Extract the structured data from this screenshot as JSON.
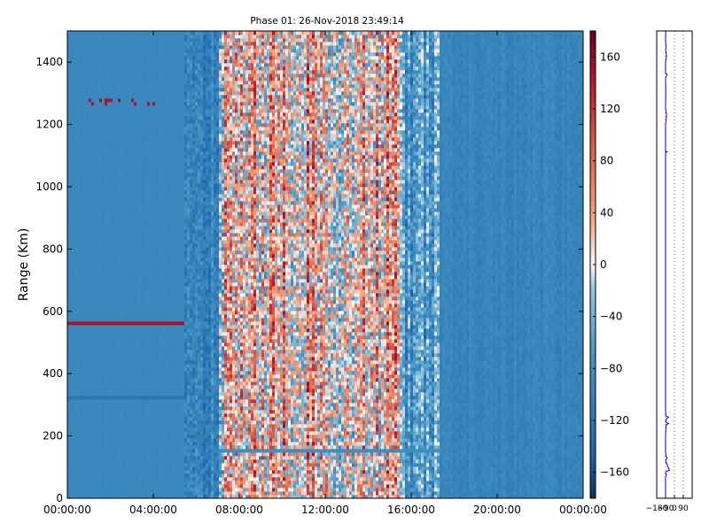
{
  "chart_data": [
    {
      "type": "heatmap",
      "title": "Phase 01: 26-Nov-2018 23:49:14",
      "xlabel": "",
      "ylabel": "Range (Km)",
      "xlim": [
        "00:00:00",
        "24:00:00"
      ],
      "ylim": [
        0,
        1500
      ],
      "x_ticks": [
        "00:00:00",
        "04:00:00",
        "08:00:00",
        "12:00:00",
        "16:00:00",
        "20:00:00",
        "00:00:00"
      ],
      "x_tick_hours": [
        0,
        4,
        8,
        12,
        16,
        20,
        24
      ],
      "y_ticks": [
        0,
        200,
        400,
        600,
        800,
        1000,
        1200,
        1400
      ],
      "colormap": "RdBu_r",
      "zlim": [
        -180,
        180
      ],
      "colorbar_ticks": [
        -160,
        -120,
        -80,
        -40,
        0,
        40,
        80,
        120,
        160
      ],
      "regions": [
        {
          "from_hour": 0,
          "to_hour": 5.4,
          "level": -90,
          "noise": 4
        },
        {
          "from_hour": 5.5,
          "to_hour": 7.0,
          "level": -100,
          "noise": 60
        },
        {
          "from_hour": 7.0,
          "to_hour": 9.0,
          "level": 20,
          "noise": 150
        },
        {
          "from_hour": 9.0,
          "to_hour": 15.5,
          "level": 30,
          "noise": 150
        },
        {
          "from_hour": 15.5,
          "to_hour": 17.3,
          "level": -60,
          "noise": 100
        },
        {
          "from_hour": 17.3,
          "to_hour": 24.0,
          "level": -95,
          "noise": 20
        }
      ],
      "horizontal_features": [
        {
          "range_km": 1272,
          "from_hour": 0,
          "to_hour": 5.4,
          "value": 150,
          "sparse": true
        },
        {
          "range_km": 560,
          "from_hour": 0,
          "to_hour": 5.4,
          "value": 150,
          "sparse": false
        },
        {
          "range_km": 320,
          "from_hour": 0,
          "to_hour": 5.4,
          "value": -120,
          "sparse": false
        },
        {
          "range_km": 150,
          "from_hour": 7.0,
          "to_hour": 17.5,
          "value": -80,
          "sparse": false
        }
      ]
    },
    {
      "type": "line",
      "title": "",
      "xlabel": "",
      "ylabel": "",
      "xlim": [
        -180,
        180
      ],
      "x_ticks": [
        -180,
        -90,
        0,
        90
      ],
      "x_tick_labels": [
        "−180",
        "−90",
        "0",
        "90"
      ],
      "ylim": [
        0,
        1500
      ],
      "grid": "vertical-dotted",
      "line_color": "#0000cc",
      "series": [
        {
          "range_km": [
            0,
            70,
            75,
            80,
            85,
            90,
            120,
            130,
            135,
            140,
            145,
            200,
            235,
            240,
            245,
            255,
            260,
            265,
            270,
            280,
            400,
            600,
            800,
            1000,
            1110,
            1112,
            1114,
            1200,
            1230,
            1240,
            1250,
            1300,
            1350,
            1360,
            1365,
            1400,
            1420,
            1440,
            1450,
            1470,
            1500
          ],
          "phase_deg": [
            -90,
            -90,
            -80,
            -90,
            -88,
            -50,
            -90,
            -75,
            -90,
            -85,
            -90,
            -90,
            -85,
            -60,
            -90,
            -82,
            -60,
            -90,
            -88,
            -90,
            -90,
            -90,
            -90,
            -90,
            -90,
            -75,
            -90,
            -90,
            -80,
            -85,
            -90,
            -88,
            -90,
            -75,
            -90,
            -90,
            -80,
            -90,
            -85,
            -90,
            -88
          ]
        }
      ]
    }
  ]
}
